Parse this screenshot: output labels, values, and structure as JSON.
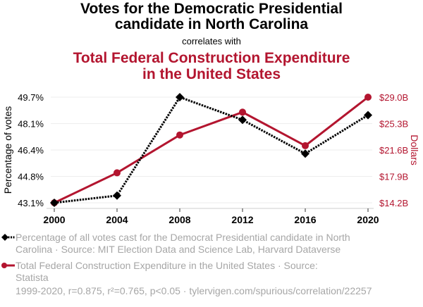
{
  "header": {
    "title_line1": "Votes for the Democratic Presidential",
    "title_line2": "candidate in North Carolina",
    "correlates": "correlates with",
    "subtitle_line1": "Total Federal Construction Expenditure",
    "subtitle_line2": "in the United States"
  },
  "colors": {
    "series1": "#000000",
    "series2": "#b3152f",
    "muted": "#a6a6a6"
  },
  "chart_data": {
    "type": "line",
    "x": [
      2000,
      2004,
      2008,
      2012,
      2016,
      2020
    ],
    "xticks": [
      "2000",
      "2004",
      "2008",
      "2012",
      "2016",
      "2020"
    ],
    "series": [
      {
        "name": "Percentage of all votes cast for the Democrat Presidential candidate in North Carolina",
        "axis": "left",
        "style": "dotted, diamond markers",
        "values": [
          43.1,
          43.55,
          49.7,
          48.28,
          46.17,
          48.58
        ]
      },
      {
        "name": "Total Federal Construction Expenditure in the United States",
        "axis": "right",
        "style": "solid, circle markers",
        "values": [
          14.2,
          18.4,
          23.7,
          26.9,
          22.2,
          29.0
        ]
      }
    ],
    "ylabel_left": "Percentage of votes",
    "ylabel_right": "Dollars",
    "ylim_left": [
      43.1,
      49.7
    ],
    "ylim_right": [
      14.2,
      29.0
    ],
    "yticks_left": [
      "43.1%",
      "44.8%",
      "46.4%",
      "48.1%",
      "49.7%"
    ],
    "yticks_right": [
      "$14.2B",
      "$17.9B",
      "$21.6B",
      "$25.3B",
      "$29.0B"
    ],
    "grid": true,
    "legend_position": "bottom"
  },
  "legend": {
    "item1_line1": "Percentage of all votes cast for the Democrat Presidential candidate in North",
    "item1_line2": "Carolina · Source: MIT Election Data and Science Lab, Harvard Dataverse",
    "item2_line1": "Total Federal Construction Expenditure in the United States · Source:",
    "item2_line2": "Statista"
  },
  "footer": "1999-2020, r=0.875, r²=0.765, p<0.05 · tylervigen.com/spurious/correlation/22257"
}
